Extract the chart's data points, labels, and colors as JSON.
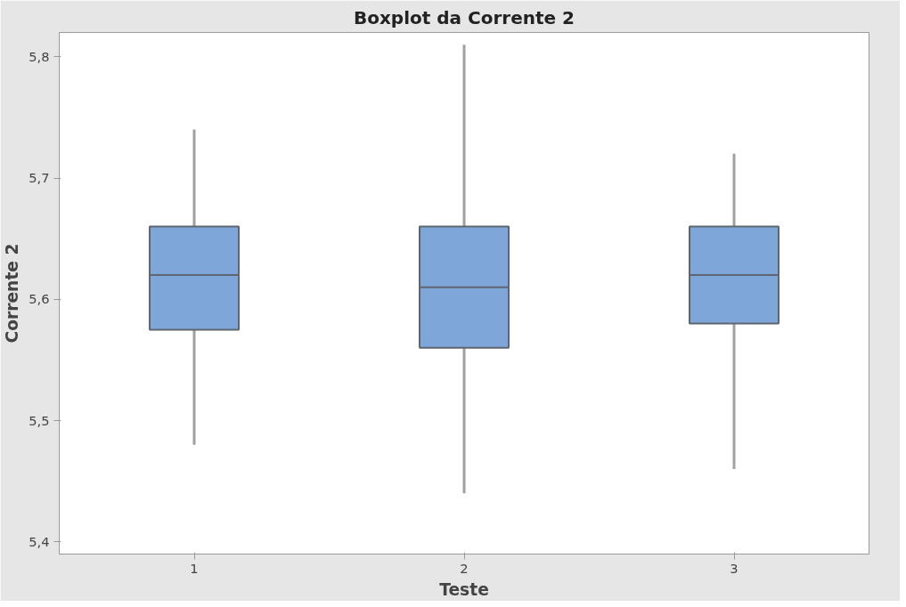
{
  "chart_data": {
    "type": "box",
    "title": "Boxplot da Corrente 2",
    "xlabel": "Teste",
    "ylabel": "Corrente 2",
    "categories": [
      "1",
      "2",
      "3"
    ],
    "series": [
      {
        "color": "#7ea6d8",
        "boxes": [
          {
            "low": 5.48,
            "q1": 5.575,
            "median": 5.62,
            "q3": 5.66,
            "high": 5.74
          },
          {
            "low": 5.44,
            "q1": 5.56,
            "median": 5.61,
            "q3": 5.66,
            "high": 5.81
          },
          {
            "low": 5.46,
            "q1": 5.58,
            "median": 5.62,
            "q3": 5.66,
            "high": 5.72
          }
        ]
      }
    ],
    "ylim": [
      5.39,
      5.82
    ],
    "yticks": [
      {
        "value": 5.4,
        "label": "5,4"
      },
      {
        "value": 5.5,
        "label": "5,5"
      },
      {
        "value": 5.6,
        "label": "5,6"
      },
      {
        "value": 5.7,
        "label": "5,7"
      },
      {
        "value": 5.8,
        "label": "5,8"
      }
    ],
    "grid": false
  }
}
